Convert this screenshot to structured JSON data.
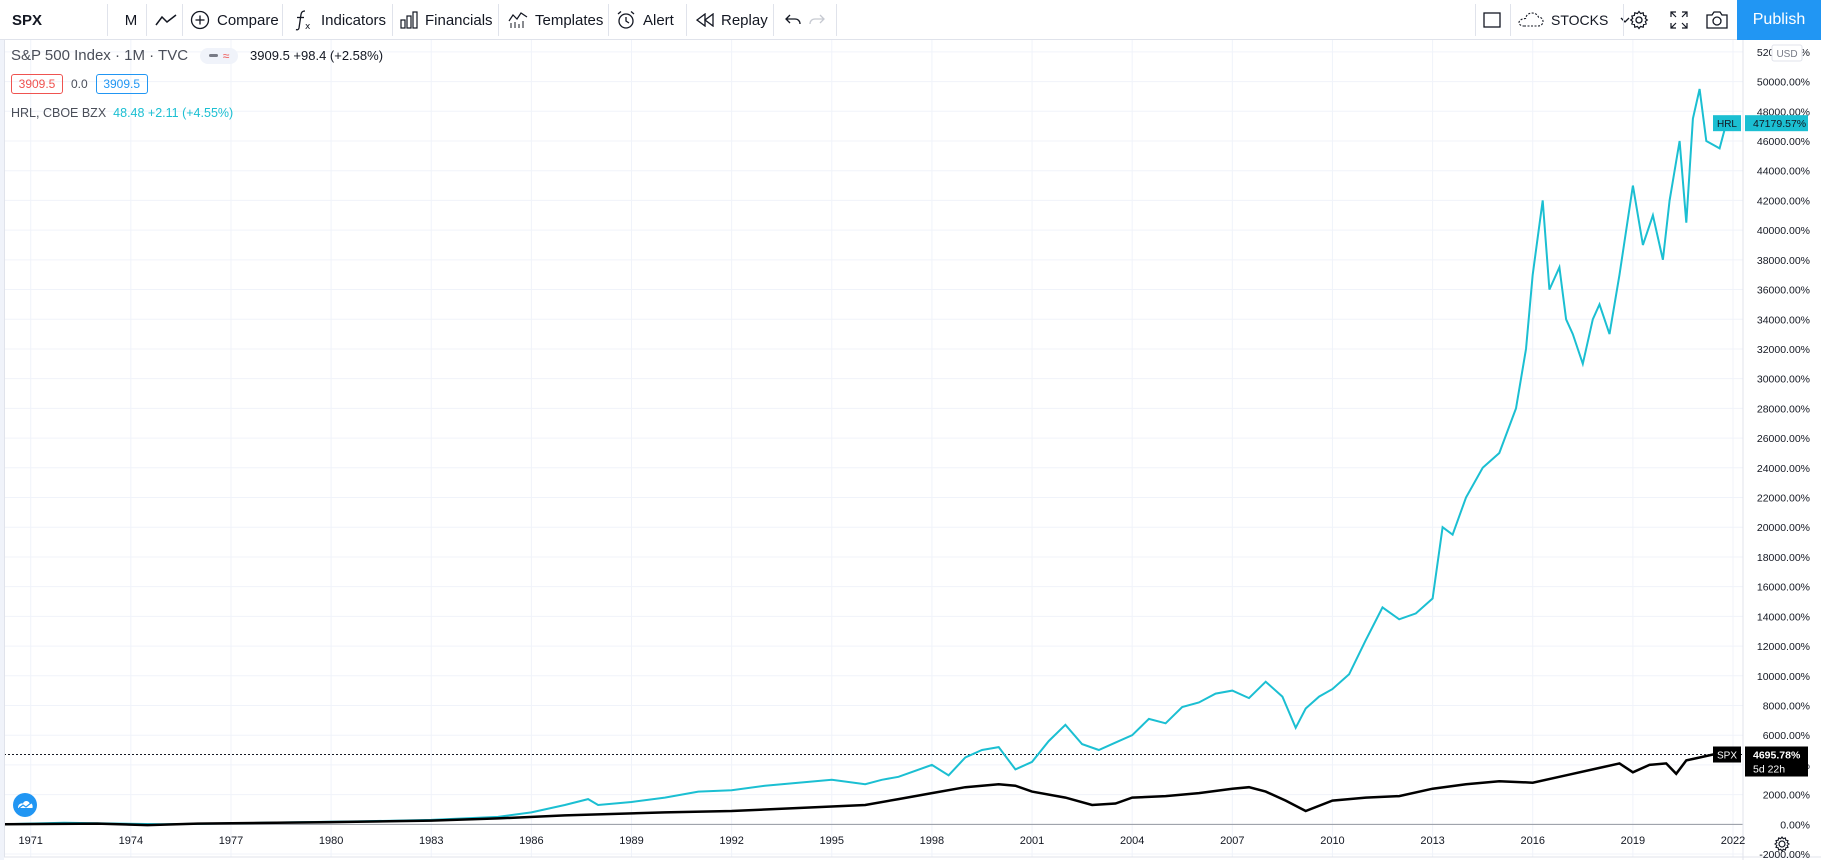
{
  "toolbar": {
    "symbol": "SPX",
    "interval": "M",
    "compare_label": "Compare",
    "indicators_label": "Indicators",
    "financials_label": "Financials",
    "templates_label": "Templates",
    "alert_label": "Alert",
    "replay_label": "Replay",
    "stocks_label": "STOCKS",
    "publish_label": "Publish"
  },
  "legend": {
    "main_title": "S&P 500 Index · 1M · TVC",
    "main_values": "3909.5  +98.4 (+2.58%)",
    "bid": "3909.5",
    "spread": "0.0",
    "ask": "3909.5",
    "compare_title": "HRL, CBOE BZX",
    "compare_values": "48.48  +2.11 (+4.55%)"
  },
  "colors": {
    "hrl_line": "#1bbfd2",
    "spx_line": "#000000",
    "accent": "#2196f3",
    "bid_red": "#ef5350"
  },
  "chart_data": {
    "type": "line",
    "ylim": [
      -2200,
      52800
    ],
    "xlim": [
      1970.2,
      2022.3
    ],
    "y_ticks": [
      "52000.00%",
      "50000.00%",
      "48000.00%",
      "46000.00%",
      "44000.00%",
      "42000.00%",
      "40000.00%",
      "38000.00%",
      "36000.00%",
      "34000.00%",
      "32000.00%",
      "30000.00%",
      "28000.00%",
      "26000.00%",
      "24000.00%",
      "22000.00%",
      "20000.00%",
      "18000.00%",
      "16000.00%",
      "14000.00%",
      "12000.00%",
      "10000.00%",
      "8000.00%",
      "6000.00%",
      "4000.00%",
      "2000.00%",
      "0.00%",
      "-2000.00%"
    ],
    "y_tick_values": [
      52000,
      50000,
      48000,
      46000,
      44000,
      42000,
      40000,
      38000,
      36000,
      34000,
      32000,
      30000,
      28000,
      26000,
      24000,
      22000,
      20000,
      18000,
      16000,
      14000,
      12000,
      10000,
      8000,
      6000,
      4000,
      2000,
      0,
      -2000
    ],
    "x_ticks": [
      "1971",
      "1974",
      "1977",
      "1980",
      "1983",
      "1986",
      "1989",
      "1992",
      "1995",
      "1998",
      "2001",
      "2004",
      "2007",
      "2010",
      "2013",
      "2016",
      "2019",
      "2022"
    ],
    "x_tick_values": [
      1971,
      1974,
      1977,
      1980,
      1983,
      1986,
      1989,
      1992,
      1995,
      1998,
      2001,
      2004,
      2007,
      2010,
      2013,
      2016,
      2019,
      2022
    ],
    "currency_label": "USD",
    "series": [
      {
        "name": "HRL",
        "last_label": "47179.57%",
        "x": [
          1970.2,
          1972,
          1975,
          1978,
          1981,
          1983,
          1985,
          1986,
          1987,
          1987.7,
          1988,
          1989,
          1990,
          1991,
          1992,
          1993,
          1994,
          1995,
          1996,
          1996.5,
          1997,
          1998,
          1998.5,
          1999,
          1999.5,
          2000,
          2000.5,
          2001,
          2001.5,
          2002,
          2002.5,
          2003,
          2003.5,
          2004,
          2004.5,
          2005,
          2005.5,
          2006,
          2006.5,
          2007,
          2007.5,
          2008,
          2008.5,
          2008.9,
          2009.2,
          2009.6,
          2010,
          2010.5,
          2011,
          2011.5,
          2012,
          2012.5,
          2013,
          2013.3,
          2013.6,
          2014,
          2014.5,
          2015,
          2015.5,
          2015.8,
          2016,
          2016.3,
          2016.5,
          2016.8,
          2017,
          2017.2,
          2017.5,
          2017.8,
          2018,
          2018.3,
          2018.6,
          2019,
          2019.3,
          2019.6,
          2019.9,
          2020.1,
          2020.4,
          2020.6,
          2020.8,
          2021,
          2021.2,
          2021.6,
          2021.8
        ],
        "y": [
          0,
          100,
          0,
          100,
          200,
          300,
          500,
          800,
          1300,
          1700,
          1300,
          1500,
          1800,
          2200,
          2300,
          2600,
          2800,
          3000,
          2700,
          3000,
          3200,
          4000,
          3300,
          4500,
          5000,
          5200,
          3700,
          4200,
          5600,
          6700,
          5400,
          5000,
          5500,
          6000,
          7100,
          6800,
          7900,
          8200,
          8800,
          9000,
          8500,
          9600,
          8600,
          6500,
          7800,
          8600,
          9100,
          10100,
          12400,
          14600,
          13800,
          14200,
          15200,
          20000,
          19500,
          22000,
          24000,
          25000,
          28000,
          32000,
          37000,
          42000,
          36000,
          37500,
          34000,
          33000,
          31000,
          34000,
          35000,
          33000,
          37000,
          43000,
          39000,
          41000,
          38000,
          42000,
          46000,
          40500,
          47500,
          49500,
          46000,
          45500,
          47200
        ]
      },
      {
        "name": "SPX",
        "last_label": "4695.78%",
        "countdown": "5d 22h",
        "x": [
          1970.2,
          1973,
          1974.5,
          1976,
          1980,
          1983,
          1985,
          1987,
          1990,
          1992,
          1994,
          1996,
          1997,
          1998,
          1999,
          2000,
          2000.5,
          2001,
          2002,
          2002.8,
          2003.5,
          2004,
          2005,
          2006,
          2007,
          2007.5,
          2008,
          2008.6,
          2009.2,
          2010,
          2011,
          2012,
          2013,
          2014,
          2015,
          2016,
          2017,
          2018,
          2018.6,
          2019,
          2019.5,
          2020,
          2020.3,
          2020.6,
          2021,
          2021.4,
          2021.8
        ],
        "y": [
          0,
          50,
          -50,
          50,
          150,
          250,
          400,
          600,
          800,
          900,
          1100,
          1300,
          1700,
          2100,
          2500,
          2700,
          2600,
          2200,
          1800,
          1300,
          1400,
          1800,
          1900,
          2100,
          2400,
          2500,
          2200,
          1600,
          900,
          1600,
          1800,
          1900,
          2400,
          2700,
          2900,
          2800,
          3300,
          3800,
          4100,
          3500,
          4000,
          4100,
          3400,
          4300,
          4500,
          4700,
          4700
        ]
      }
    ]
  }
}
